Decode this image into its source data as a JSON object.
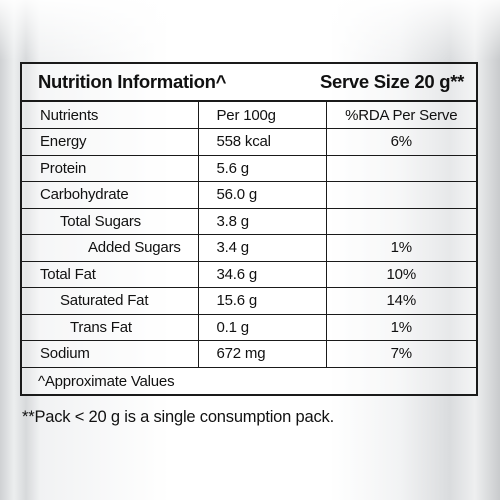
{
  "header": {
    "title": "Nutrition Information^",
    "serve_size": "Serve Size 20 g**"
  },
  "table": {
    "columns": [
      "Nutrients",
      "Per 100g",
      "%RDA Per Serve"
    ],
    "rows": [
      {
        "nutrient": "Energy",
        "per100": "558 kcal",
        "rda": "6%"
      },
      {
        "nutrient": "Protein",
        "per100": "5.6 g",
        "rda": ""
      },
      {
        "nutrient": "Carbohydrate",
        "per100": "56.0 g",
        "rda": ""
      },
      {
        "nutrient": "Total Sugars",
        "per100": "3.8 g",
        "rda": ""
      },
      {
        "nutrient": "Added Sugars",
        "per100": "3.4 g",
        "rda": "1%"
      },
      {
        "nutrient": "Total Fat",
        "per100": "34.6 g",
        "rda": "10%"
      },
      {
        "nutrient": "Saturated Fat",
        "per100": "15.6 g",
        "rda": "14%"
      },
      {
        "nutrient": "Trans Fat",
        "per100": "0.1 g",
        "rda": "1%"
      },
      {
        "nutrient": "Sodium",
        "per100": "672 mg",
        "rda": "7%"
      }
    ]
  },
  "footnote": "^Approximate Values",
  "pack_note": "**Pack < 20 g is a single consumption pack."
}
